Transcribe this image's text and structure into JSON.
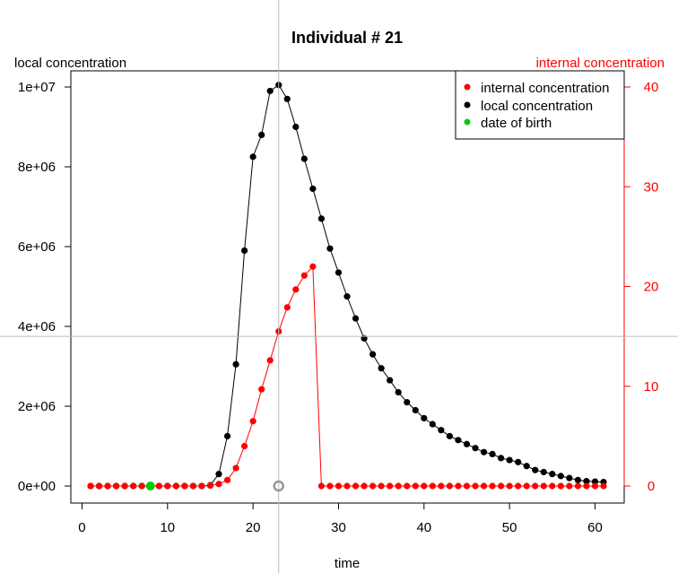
{
  "chart_data": {
    "type": "scatter",
    "title": "Individual # 21",
    "xlabel": "time",
    "ylabel_left": "local concentration",
    "ylabel_right": "internal concentration",
    "xlim": [
      1,
      61
    ],
    "x_ticks": [
      0,
      10,
      20,
      30,
      40,
      50,
      60
    ],
    "x_tick_labels": [
      "0",
      "10",
      "20",
      "30",
      "40",
      "50",
      "60"
    ],
    "ylim_left": [
      0,
      10000000
    ],
    "y_left_ticks": [
      0,
      2000000,
      4000000,
      6000000,
      8000000,
      10000000
    ],
    "y_left_tick_labels": [
      "0e+00",
      "2e+06",
      "4e+06",
      "6e+06",
      "8e+06",
      "1e+07"
    ],
    "ylim_right": [
      0,
      40
    ],
    "y_right_ticks": [
      0,
      10,
      20,
      30,
      40
    ],
    "y_right_tick_labels": [
      "0",
      "10",
      "20",
      "30",
      "40"
    ],
    "grid": false,
    "legend_position": "top-right",
    "legend": [
      {
        "name": "internal concentration",
        "color": "#ff0000"
      },
      {
        "name": "local concentration",
        "color": "#000000"
      },
      {
        "name": "date of birth",
        "color": "#00cc00"
      }
    ],
    "series": [
      {
        "name": "local concentration",
        "axis": "left",
        "color": "#000000",
        "x": [
          1,
          2,
          3,
          4,
          5,
          6,
          7,
          8,
          9,
          10,
          11,
          12,
          13,
          14,
          15,
          16,
          17,
          18,
          19,
          20,
          21,
          22,
          23,
          24,
          25,
          26,
          27,
          28,
          29,
          30,
          31,
          32,
          33,
          34,
          35,
          36,
          37,
          38,
          39,
          40,
          41,
          42,
          43,
          44,
          45,
          46,
          47,
          48,
          49,
          50,
          51,
          52,
          53,
          54,
          55,
          56,
          57,
          58,
          59,
          60,
          61
        ],
        "y": [
          0,
          0,
          0,
          0,
          0,
          0,
          0,
          0,
          0,
          0,
          0,
          0,
          0,
          0,
          20000,
          300000,
          1250000,
          3050000,
          5900000,
          8250000,
          8800000,
          9900000,
          10050000,
          9700000,
          9000000,
          8200000,
          7450000,
          6700000,
          5950000,
          5350000,
          4750000,
          4200000,
          3700000,
          3300000,
          2950000,
          2650000,
          2350000,
          2100000,
          1900000,
          1700000,
          1550000,
          1400000,
          1250000,
          1150000,
          1050000,
          950000,
          850000,
          800000,
          700000,
          650000,
          600000,
          500000,
          400000,
          350000,
          300000,
          250000,
          200000,
          150000,
          120000,
          110000,
          100000
        ]
      },
      {
        "name": "internal concentration",
        "axis": "right",
        "color": "#ff0000",
        "x": [
          1,
          2,
          3,
          4,
          5,
          6,
          7,
          8,
          9,
          10,
          11,
          12,
          13,
          14,
          15,
          16,
          17,
          18,
          19,
          20,
          21,
          22,
          23,
          24,
          25,
          26,
          27,
          28,
          29,
          30,
          31,
          32,
          33,
          34,
          35,
          36,
          37,
          38,
          39,
          40,
          41,
          42,
          43,
          44,
          45,
          46,
          47,
          48,
          49,
          50,
          51,
          52,
          53,
          54,
          55,
          56,
          57,
          58,
          59,
          60,
          61
        ],
        "y": [
          0,
          0,
          0,
          0,
          0,
          0,
          0,
          0,
          0,
          0,
          0,
          0,
          0,
          0,
          0.05,
          0.2,
          0.6,
          1.8,
          4,
          6.5,
          9.7,
          12.6,
          15.5,
          17.9,
          19.7,
          21.1,
          22,
          0,
          0,
          0,
          0,
          0,
          0,
          0,
          0,
          0,
          0,
          0,
          0,
          0,
          0,
          0,
          0,
          0,
          0,
          0,
          0,
          0,
          0,
          0,
          0,
          0,
          0,
          0,
          0,
          0,
          0,
          0,
          0,
          0,
          0
        ]
      },
      {
        "name": "date of birth",
        "axis": "left",
        "color": "#00cc00",
        "x": [
          8
        ],
        "y": [
          0
        ]
      }
    ],
    "cursor_marker": {
      "x": 23,
      "y": 0,
      "color": "#999999"
    },
    "crosshair": {
      "x": 23,
      "y_right": 15,
      "color": "#bbbbbb"
    }
  }
}
